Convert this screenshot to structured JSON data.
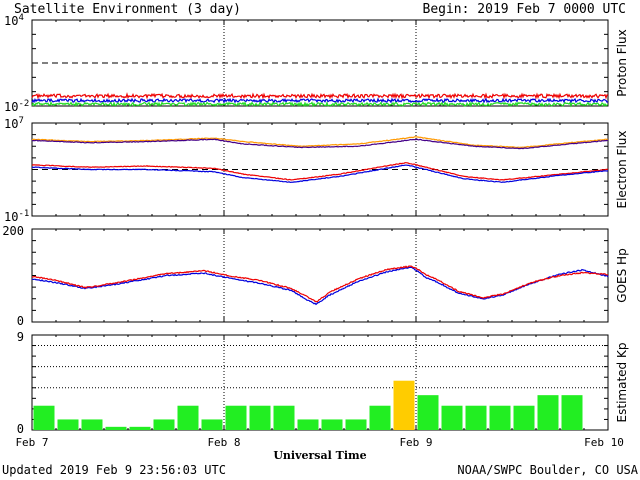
{
  "header": {
    "title": "Satellite Environment (3 day)",
    "begin": "Begin:  2019 Feb 7 0000 UTC"
  },
  "footer": {
    "updated": "Updated 2019 Feb  9 23:56:03 UTC",
    "credit": "NOAA/SWPC Boulder, CO USA"
  },
  "colors": {
    "red": "#ee0000",
    "blue": "#0000dd",
    "green": "#22dd22",
    "orange": "#ff9900",
    "purple": "#440088",
    "kp_green": "#22ee22",
    "kp_yellow": "#ffcc00"
  },
  "chart_data": [
    {
      "type": "line",
      "panel": "proton",
      "ylabel": "Proton Flux",
      "yscale": "log",
      "ylim_exp": [
        -2,
        4
      ],
      "tick_labels": [
        {
          "base": "10",
          "exp": "4"
        },
        {
          "base": "10",
          "exp": "-2"
        }
      ],
      "threshold_exp": 1,
      "x_days": [
        0,
        3
      ],
      "series": [
        {
          "color": "red",
          "base_exp": -1.3,
          "noise": 0.25
        },
        {
          "color": "blue",
          "base_exp": -1.62,
          "noise": 0.22
        },
        {
          "color": "green",
          "base_exp": -1.87,
          "noise": 0.22
        }
      ]
    },
    {
      "type": "line",
      "panel": "electron",
      "ylabel": "Electron Flux",
      "yscale": "log",
      "ylim_exp": [
        -1,
        7
      ],
      "tick_labels": [
        {
          "base": "10",
          "exp": "7"
        },
        {
          "base": "10",
          "exp": "-1"
        }
      ],
      "threshold_exp": 3,
      "x_days": [
        0,
        3
      ],
      "series": [
        {
          "color": "orange",
          "points": [
            [
              0,
              5.6
            ],
            [
              0.3,
              5.4
            ],
            [
              0.6,
              5.5
            ],
            [
              0.95,
              5.7
            ],
            [
              1.1,
              5.4
            ],
            [
              1.4,
              5.0
            ],
            [
              1.7,
              5.2
            ],
            [
              2.0,
              5.8
            ],
            [
              2.3,
              5.1
            ],
            [
              2.55,
              4.9
            ],
            [
              2.8,
              5.3
            ],
            [
              3.0,
              5.6
            ]
          ]
        },
        {
          "color": "purple",
          "points": [
            [
              0,
              5.5
            ],
            [
              0.3,
              5.3
            ],
            [
              0.6,
              5.4
            ],
            [
              0.95,
              5.6
            ],
            [
              1.1,
              5.2
            ],
            [
              1.4,
              4.9
            ],
            [
              1.7,
              5.0
            ],
            [
              2.0,
              5.6
            ],
            [
              2.3,
              5.0
            ],
            [
              2.55,
              4.8
            ],
            [
              2.8,
              5.2
            ],
            [
              3.0,
              5.5
            ]
          ]
        },
        {
          "color": "red",
          "points": [
            [
              0,
              3.4
            ],
            [
              0.3,
              3.2
            ],
            [
              0.6,
              3.3
            ],
            [
              0.95,
              3.1
            ],
            [
              1.1,
              2.6
            ],
            [
              1.35,
              2.1
            ],
            [
              1.6,
              2.6
            ],
            [
              1.95,
              3.6
            ],
            [
              2.05,
              3.2
            ],
            [
              2.25,
              2.4
            ],
            [
              2.45,
              2.1
            ],
            [
              2.75,
              2.6
            ],
            [
              3.0,
              3.0
            ]
          ]
        },
        {
          "color": "blue",
          "points": [
            [
              0,
              3.2
            ],
            [
              0.3,
              3.0
            ],
            [
              0.6,
              3.0
            ],
            [
              0.95,
              2.8
            ],
            [
              1.1,
              2.3
            ],
            [
              1.35,
              1.9
            ],
            [
              1.6,
              2.4
            ],
            [
              1.95,
              3.4
            ],
            [
              2.05,
              3.0
            ],
            [
              2.25,
              2.2
            ],
            [
              2.45,
              1.9
            ],
            [
              2.75,
              2.5
            ],
            [
              3.0,
              2.9
            ]
          ]
        }
      ]
    },
    {
      "type": "line",
      "panel": "goes_hp",
      "ylabel": "GOES Hp",
      "ylim": [
        0,
        200
      ],
      "tick_labels": [
        "200",
        "0"
      ],
      "x_days": [
        0,
        3
      ],
      "series": [
        {
          "color": "blue",
          "points": [
            [
              0,
              93
            ],
            [
              0.12,
              85
            ],
            [
              0.28,
              72
            ],
            [
              0.45,
              82
            ],
            [
              0.7,
              100
            ],
            [
              0.9,
              105
            ],
            [
              1.02,
              95
            ],
            [
              1.2,
              82
            ],
            [
              1.35,
              68
            ],
            [
              1.43,
              48
            ],
            [
              1.48,
              38
            ],
            [
              1.55,
              58
            ],
            [
              1.7,
              88
            ],
            [
              1.85,
              108
            ],
            [
              1.97,
              118
            ],
            [
              2.0,
              112
            ],
            [
              2.05,
              96
            ],
            [
              2.12,
              84
            ],
            [
              2.22,
              62
            ],
            [
              2.35,
              50
            ],
            [
              2.45,
              58
            ],
            [
              2.6,
              83
            ],
            [
              2.75,
              103
            ],
            [
              2.87,
              112
            ],
            [
              3.0,
              98
            ]
          ]
        },
        {
          "color": "red",
          "points": [
            [
              0,
              98
            ],
            [
              0.12,
              90
            ],
            [
              0.28,
              74
            ],
            [
              0.45,
              85
            ],
            [
              0.7,
              104
            ],
            [
              0.9,
              110
            ],
            [
              1.02,
              100
            ],
            [
              1.2,
              88
            ],
            [
              1.35,
              72
            ],
            [
              1.43,
              55
            ],
            [
              1.48,
              43
            ],
            [
              1.55,
              64
            ],
            [
              1.7,
              93
            ],
            [
              1.85,
              113
            ],
            [
              1.97,
              120
            ],
            [
              2.0,
              116
            ],
            [
              2.05,
              102
            ],
            [
              2.12,
              89
            ],
            [
              2.22,
              66
            ],
            [
              2.35,
              52
            ],
            [
              2.45,
              60
            ],
            [
              2.6,
              85
            ],
            [
              2.75,
              100
            ],
            [
              2.87,
              106
            ],
            [
              3.0,
              102
            ]
          ]
        }
      ]
    },
    {
      "type": "bar",
      "panel": "kp",
      "ylabel": "Estimated Kp",
      "ylim": [
        0,
        9
      ],
      "tick_labels": [
        "9",
        "0"
      ],
      "dotted_levels": [
        4,
        6,
        8
      ],
      "values": [
        2.3,
        1.0,
        1.0,
        0.3,
        0.3,
        1.0,
        2.3,
        1.0,
        2.3,
        2.3,
        2.3,
        1.0,
        1.0,
        1.0,
        2.3,
        4.67,
        3.3,
        2.3,
        2.3,
        2.3,
        2.3,
        3.3,
        3.3
      ],
      "highlight_min": 4
    }
  ],
  "x_axis": {
    "title": "Universal Time",
    "tick_labels": [
      "Feb 7",
      "Feb 8",
      "Feb 9",
      "Feb 10"
    ]
  }
}
